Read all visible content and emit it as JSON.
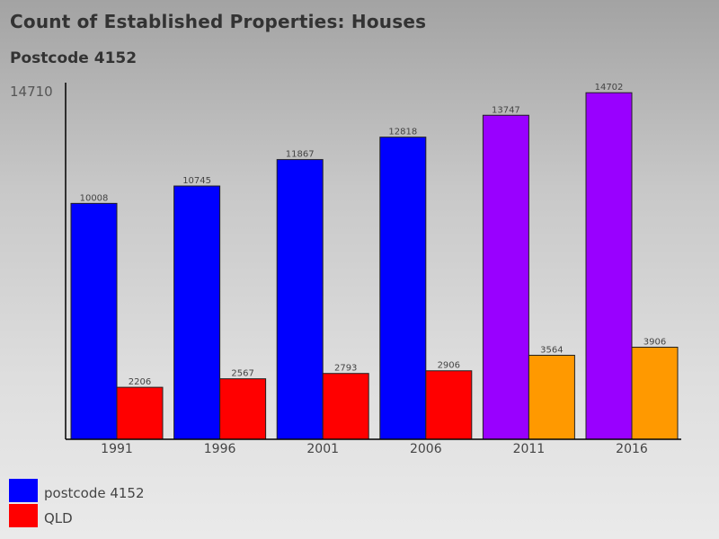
{
  "chart_data": {
    "type": "bar",
    "title": "Count of Established Properties: Houses",
    "subtitle": "Postcode 4152",
    "categories": [
      "1991",
      "1996",
      "2001",
      "2006",
      "2011",
      "2016"
    ],
    "ymax_label": "14710",
    "ylim": [
      0,
      14710
    ],
    "grid": false,
    "legend_position": "bottom-left",
    "series": [
      {
        "name": "postcode 4152",
        "values": [
          10008,
          10745,
          11867,
          12818,
          13747,
          14702
        ],
        "colors": [
          "#0000ff",
          "#0000ff",
          "#0000ff",
          "#0000ff",
          "#9900ff",
          "#9900ff"
        ]
      },
      {
        "name": "QLD",
        "values": [
          2206,
          2567,
          2793,
          2906,
          3564,
          3906
        ],
        "colors": [
          "#ff0000",
          "#ff0000",
          "#ff0000",
          "#ff0000",
          "#ff9900",
          "#ff9900"
        ]
      }
    ]
  },
  "legend": {
    "items": [
      {
        "label": "postcode 4152",
        "color": "#0000ff"
      },
      {
        "label": "QLD",
        "color": "#ff0000"
      }
    ]
  }
}
